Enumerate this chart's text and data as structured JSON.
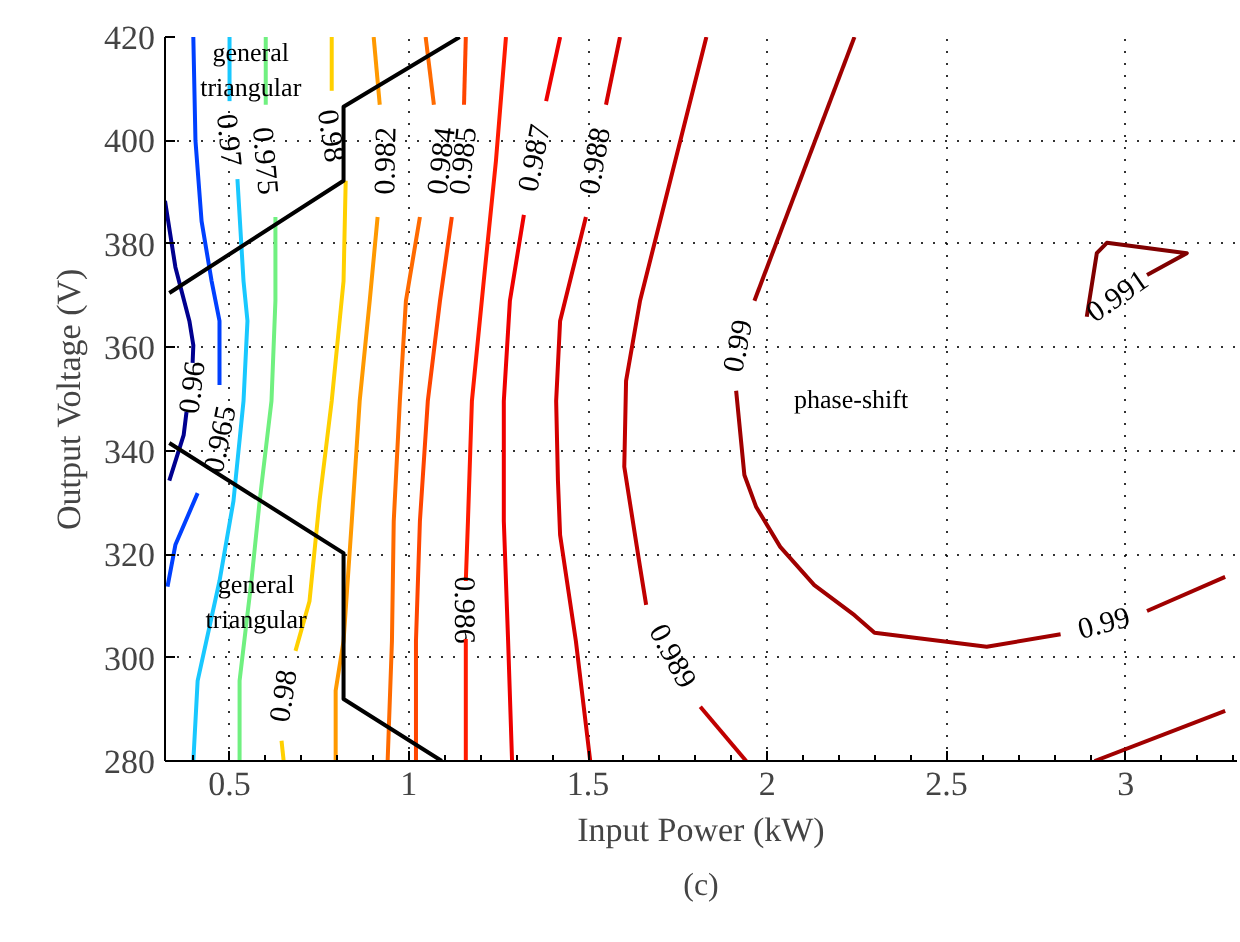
{
  "chart_data": {
    "type": "line",
    "xlabel": "Input Power (kW)",
    "ylabel": "Output Voltage (V)",
    "xlim": [
      0.32,
      3.31
    ],
    "ylim": [
      280,
      420
    ],
    "xticks": [
      0.5,
      1,
      1.5,
      2,
      2.5,
      3
    ],
    "yticks": [
      280,
      300,
      320,
      340,
      360,
      380,
      400,
      420
    ],
    "grid": true,
    "marker": "none",
    "line_style": "solid",
    "series": [
      {
        "name": "0.96",
        "color": "#00008f",
        "x": [
          0.32,
          0.349,
          0.388,
          0.399,
          0.397
        ],
        "values": [
          388.3,
          375.5,
          365.1,
          360.4,
          357.0
        ]
      },
      {
        "color": "#00008f",
        "x": [
          0.38,
          0.372,
          0.332
        ],
        "values": [
          347.5,
          343.0,
          334.2
        ]
      },
      {
        "name": "0.965",
        "color": "#0040ff",
        "x": [
          0.399,
          0.405,
          0.422,
          0.45,
          0.472,
          0.472
        ],
        "values": [
          420,
          399.9,
          384.4,
          372.8,
          365.1,
          352.7
        ]
      },
      {
        "color": "#0040ff",
        "x": [
          0.411,
          0.349,
          0.327
        ],
        "values": [
          331.8,
          321.8,
          313.7
        ]
      },
      {
        "name": "0.97",
        "color": "#19c8ff",
        "x": [
          0.5,
          0.5
        ],
        "values": [
          420,
          407.6
        ]
      },
      {
        "color": "#19c8ff",
        "x": [
          0.522,
          0.539,
          0.55,
          0.539,
          0.511,
          0.472,
          0.411,
          0.399
        ],
        "values": [
          392.5,
          372.8,
          365.1,
          349.6,
          330.3,
          314.8,
          295.5,
          280
        ]
      },
      {
        "name": "0.975",
        "color": "#70f080",
        "x": [
          0.601,
          0.601
        ],
        "values": [
          420,
          406.9
        ]
      },
      {
        "color": "#70f080",
        "x": [
          0.628,
          0.628,
          0.617,
          0.584,
          0.561,
          0.528,
          0.528
        ],
        "values": [
          385.2,
          369.0,
          349.6,
          330.3,
          314.8,
          295.5,
          280
        ]
      },
      {
        "name": "0.98",
        "color": "#ffd000",
        "x": [
          0.785,
          0.785
        ],
        "values": [
          420,
          409.6
        ]
      },
      {
        "name": "0.98",
        "color": "#ffd000",
        "x": [
          0.824,
          0.818,
          0.785,
          0.751,
          0.723,
          0.684
        ],
        "values": [
          392.2,
          372.8,
          349.6,
          330.3,
          310.9,
          301.3
        ]
      },
      {
        "color": "#ffd000",
        "x": [
          0.645,
          0.651
        ],
        "values": [
          283.9,
          280
        ]
      },
      {
        "name": "0.982",
        "color": "#ff9900",
        "x": [
          0.902,
          0.919
        ],
        "values": [
          420,
          406.9
        ]
      },
      {
        "color": "#ff9900",
        "x": [
          0.913,
          0.891,
          0.863,
          0.841,
          0.818,
          0.796,
          0.796
        ],
        "values": [
          385.2,
          369.0,
          349.6,
          326.4,
          303.2,
          293.6,
          280
        ]
      },
      {
        "name": "0.984",
        "color": "#ff6a00",
        "x": [
          1.047,
          1.07
        ],
        "values": [
          420,
          406.9
        ]
      },
      {
        "color": "#ff6a00",
        "x": [
          1.031,
          0.992,
          0.975,
          0.958,
          0.953,
          0.941
        ],
        "values": [
          385.2,
          369.0,
          349.6,
          326.4,
          303.2,
          280
        ]
      },
      {
        "name": "0.985",
        "color": "#ff4500",
        "x": [
          1.159,
          1.154
        ],
        "values": [
          420,
          406.9
        ]
      },
      {
        "color": "#ff4500",
        "x": [
          1.12,
          1.087,
          1.053,
          1.031,
          1.02,
          1.02
        ],
        "values": [
          385.2,
          369.0,
          349.6,
          326.4,
          303.2,
          280
        ]
      },
      {
        "name": "0.986",
        "color": "#ff1a00",
        "x": [
          1.271,
          1.243,
          1.209,
          1.176,
          1.165,
          1.159
        ],
        "values": [
          420,
          396.0,
          372.8,
          349.6,
          326.4,
          314.8
        ]
      },
      {
        "color": "#ff1a00",
        "x": [
          1.159,
          1.159
        ],
        "values": [
          303.6,
          280
        ]
      },
      {
        "name": "0.987",
        "color": "#ee0000",
        "x": [
          1.422,
          1.383
        ],
        "values": [
          420,
          407.6
        ]
      },
      {
        "color": "#ee0000",
        "x": [
          1.321,
          1.282,
          1.265,
          1.265,
          1.277,
          1.288
        ],
        "values": [
          385.6,
          369.0,
          349.6,
          326.4,
          303.2,
          280
        ]
      },
      {
        "name": "0.988",
        "color": "#d40000",
        "x": [
          1.589,
          1.55
        ],
        "values": [
          420,
          406.9
        ]
      },
      {
        "color": "#d40000",
        "x": [
          1.494,
          1.422,
          1.411,
          1.416,
          1.422,
          1.466,
          1.506
        ],
        "values": [
          385.2,
          365.1,
          349.6,
          334.2,
          323.7,
          303.2,
          280
        ]
      },
      {
        "name": "0.989",
        "color": "#c00000",
        "x": [
          1.83,
          1.645,
          1.606,
          1.601,
          1.645,
          1.662
        ],
        "values": [
          420,
          369.0,
          353.5,
          336.9,
          317.5,
          310.2
        ]
      },
      {
        "color": "#c00000",
        "x": [
          1.813,
          1.941
        ],
        "values": [
          290.5,
          280
        ]
      },
      {
        "name": "0.99",
        "color": "#a00000",
        "x": [
          2.243,
          1.964
        ],
        "values": [
          420,
          369.0
        ]
      },
      {
        "name": "0.99",
        "color": "#a00000",
        "x": [
          1.913,
          1.936,
          1.969,
          2.036,
          2.131,
          2.243,
          2.299,
          2.612,
          2.818
        ],
        "values": [
          351.6,
          335.3,
          329.1,
          321.4,
          314.0,
          308.2,
          304.8,
          302.1,
          304.5
        ]
      },
      {
        "color": "#a00000",
        "x": [
          3.059,
          3.277
        ],
        "values": [
          309.0,
          315.6
        ]
      },
      {
        "color": "#a00000",
        "x": [
          2.913,
          3.277
        ],
        "values": [
          280,
          289.7
        ]
      },
      {
        "name": "0.991",
        "color": "#800000",
        "x": [
          3.059,
          3.17,
          2.947,
          2.919,
          2.891
        ],
        "values": [
          374.0,
          378.2,
          380.2,
          378.2,
          365.9
        ]
      },
      {
        "color": "#000000",
        "x": [
          0.332,
          0.818,
          0.818,
          1.142
        ],
        "values": [
          370.5,
          392.2,
          406.5,
          420
        ]
      },
      {
        "color": "#000000",
        "x": [
          0.332,
          0.818,
          0.818,
          1.092
        ],
        "values": [
          341.5,
          320.2,
          292,
          280
        ]
      }
    ],
    "annotations": [
      "general\ntriangular",
      "general\ntriangular",
      "phase-shift",
      "(c)"
    ]
  }
}
